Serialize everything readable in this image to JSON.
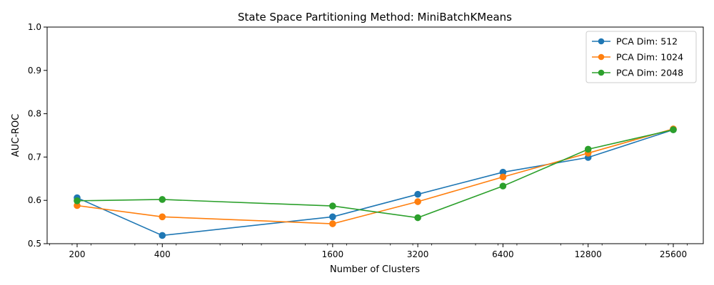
{
  "chart_data": {
    "type": "line",
    "title": "State Space Partitioning Method: MiniBatchKMeans",
    "xlabel": "Number of Clusters",
    "ylabel": "AUC-ROC",
    "x_scale": "log2",
    "x": [
      200,
      400,
      1600,
      3200,
      6400,
      12800,
      25600
    ],
    "x_tick_labels": [
      "200",
      "400",
      "1600",
      "3200",
      "6400",
      "12800",
      "25600"
    ],
    "ylim": [
      0.5,
      1.0
    ],
    "y_ticks": [
      0.5,
      0.6,
      0.7,
      0.8,
      0.9,
      1.0
    ],
    "y_tick_labels": [
      "0.5",
      "0.6",
      "0.7",
      "0.8",
      "0.9",
      "1.0"
    ],
    "grid": false,
    "legend_position": "top-right",
    "series": [
      {
        "name": "PCA Dim: 512",
        "color": "#1f77b4",
        "values": [
          0.606,
          0.519,
          0.562,
          0.614,
          0.665,
          0.699,
          0.763
        ]
      },
      {
        "name": "PCA Dim: 1024",
        "color": "#ff7f0e",
        "values": [
          0.588,
          0.562,
          0.546,
          0.597,
          0.654,
          0.709,
          0.765
        ]
      },
      {
        "name": "PCA Dim: 2048",
        "color": "#2ca02c",
        "values": [
          0.599,
          0.602,
          0.587,
          0.56,
          0.633,
          0.718,
          0.763
        ]
      }
    ]
  }
}
